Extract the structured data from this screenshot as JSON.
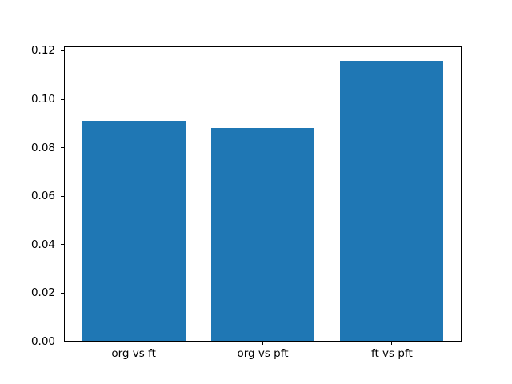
{
  "chart_data": {
    "type": "bar",
    "title": "",
    "xlabel": "",
    "ylabel": "",
    "categories": [
      "org vs ft",
      "org vs pft",
      "ft vs pft"
    ],
    "values": [
      0.091,
      0.088,
      0.116
    ],
    "ylim": [
      0,
      0.1218
    ],
    "yticks": [
      0.0,
      0.02,
      0.04,
      0.06,
      0.08,
      0.1,
      0.12
    ],
    "ytick_labels": [
      "0.00",
      "0.02",
      "0.04",
      "0.06",
      "0.08",
      "0.10",
      "0.12"
    ],
    "bar_width_fraction": 0.8,
    "bar_color": "#1f77b4",
    "spine_color": "#000000",
    "tick_color": "#000000",
    "background_color": "#ffffff",
    "grid": false,
    "legend": null
  }
}
